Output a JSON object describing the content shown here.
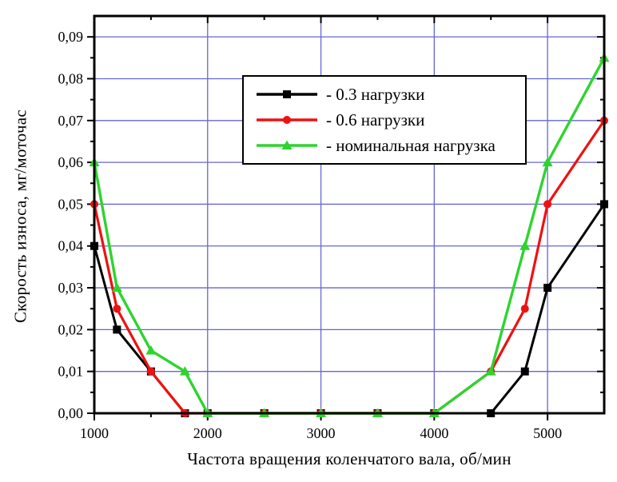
{
  "chart_data": {
    "type": "line",
    "title": "",
    "xlabel": "Частота вращения коленчатого вала, об/мин",
    "ylabel": "Скорость износа, мг/моточас",
    "xlim": [
      1000,
      5500
    ],
    "ylim": [
      0,
      0.095
    ],
    "grid": true,
    "grid_color": "#6666d2",
    "frame_color": "#000000",
    "legend_position": "inside-top-right",
    "x": [
      1000,
      1200,
      1500,
      1800,
      2000,
      2500,
      3000,
      3500,
      4000,
      4500,
      4800,
      5000,
      5500
    ],
    "series": [
      {
        "name": "0.3 нагрузки",
        "legend_label": "- 0.3 нагрузки",
        "color": "#000000",
        "marker": "square",
        "line_width": 3,
        "values": [
          0.04,
          0.02,
          0.01,
          0,
          0,
          0,
          0,
          0,
          0,
          0,
          0.01,
          0.03,
          0.05
        ]
      },
      {
        "name": "0.6 нагрузки",
        "legend_label": "- 0.6 нагрузки",
        "color": "#ee1111",
        "marker": "circle",
        "line_width": 3.2,
        "values": [
          0.05,
          0.025,
          0.01,
          0,
          0,
          0,
          0,
          0,
          0,
          0.01,
          0.025,
          0.05,
          0.07
        ]
      },
      {
        "name": "номинальная нагрузка",
        "legend_label": "- номинальная нагрузка",
        "color": "#2ed42e",
        "marker": "triangle",
        "line_width": 3.4,
        "values": [
          0.06,
          0.03,
          0.015,
          0.01,
          0,
          0,
          0,
          0,
          0,
          0.01,
          0.04,
          0.06,
          0.085
        ]
      }
    ],
    "xticks": [
      {
        "v": 1000,
        "label": "1000"
      },
      {
        "v": 2000,
        "label": "2000"
      },
      {
        "v": 3000,
        "label": "3000"
      },
      {
        "v": 4000,
        "label": "4000"
      },
      {
        "v": 5000,
        "label": "5000"
      }
    ],
    "xminor": [
      1500,
      2500,
      3500,
      4500
    ],
    "xgrid": [
      2000,
      3000,
      4000,
      5000
    ],
    "yticks": [
      {
        "v": 0,
        "label": "0,00"
      },
      {
        "v": 0.01,
        "label": "0,01"
      },
      {
        "v": 0.02,
        "label": "0,02"
      },
      {
        "v": 0.03,
        "label": "0,03"
      },
      {
        "v": 0.04,
        "label": "0,04"
      },
      {
        "v": 0.05,
        "label": "0,05"
      },
      {
        "v": 0.06,
        "label": "0,06"
      },
      {
        "v": 0.07,
        "label": "0,07"
      },
      {
        "v": 0.08,
        "label": "0,08"
      },
      {
        "v": 0.09,
        "label": "0,09"
      }
    ],
    "yminor": [
      0.005,
      0.015,
      0.025,
      0.035,
      0.045,
      0.055,
      0.065,
      0.075,
      0.085
    ],
    "ygrid": [
      0.01,
      0.02,
      0.03,
      0.04,
      0.05,
      0.06,
      0.07,
      0.08,
      0.09
    ]
  }
}
